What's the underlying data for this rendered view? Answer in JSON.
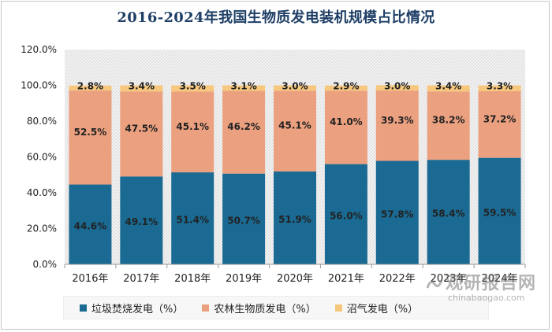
{
  "title": "2016-2024年我国生物质发电装机规模占比情况",
  "chart_data": {
    "type": "bar",
    "stacked": true,
    "categories": [
      "2016年",
      "2017年",
      "2018年",
      "2019年",
      "2020年",
      "2021年",
      "2022年",
      "2023年",
      "2024年"
    ],
    "series": [
      {
        "name": "垃圾焚烧发电（%）",
        "values": [
          44.6,
          49.1,
          51.4,
          50.7,
          51.9,
          56.0,
          57.8,
          58.4,
          59.5
        ],
        "color": "#1a6a93",
        "labels": [
          "44.6%",
          "49.1%",
          "51.4%",
          "50.7%",
          "51.9%",
          "56.0%",
          "57.8%",
          "58.4%",
          "59.5%"
        ]
      },
      {
        "name": "农林生物质发电（%）",
        "values": [
          52.5,
          47.5,
          45.1,
          46.2,
          45.1,
          41.0,
          39.3,
          38.2,
          37.2
        ],
        "color": "#eba07f",
        "labels": [
          "52.5%",
          "47.5%",
          "45.1%",
          "46.2%",
          "45.1%",
          "41.0%",
          "39.3%",
          "38.2%",
          "37.2%"
        ]
      },
      {
        "name": "沼气发电（%）",
        "values": [
          2.8,
          3.4,
          3.5,
          3.1,
          3.0,
          2.9,
          3.0,
          3.4,
          3.3
        ],
        "color": "#f6c77d",
        "labels": [
          "2.8%",
          "3.4%",
          "3.5%",
          "3.1%",
          "3.0%",
          "2.9%",
          "3.0%",
          "3.4%",
          "3.3%"
        ]
      }
    ],
    "ylim": [
      0,
      120
    ],
    "yticks": [
      "0.0%",
      "20.0%",
      "40.0%",
      "60.0%",
      "80.0%",
      "100.0%",
      "120.0%"
    ],
    "ytick_values": [
      0,
      20,
      40,
      60,
      80,
      100,
      120
    ],
    "grid": false,
    "legend_position": "bottom",
    "plot_background": "striped gray"
  },
  "watermark": {
    "cn": "观研报告网",
    "en": "chinabaogao.com"
  }
}
